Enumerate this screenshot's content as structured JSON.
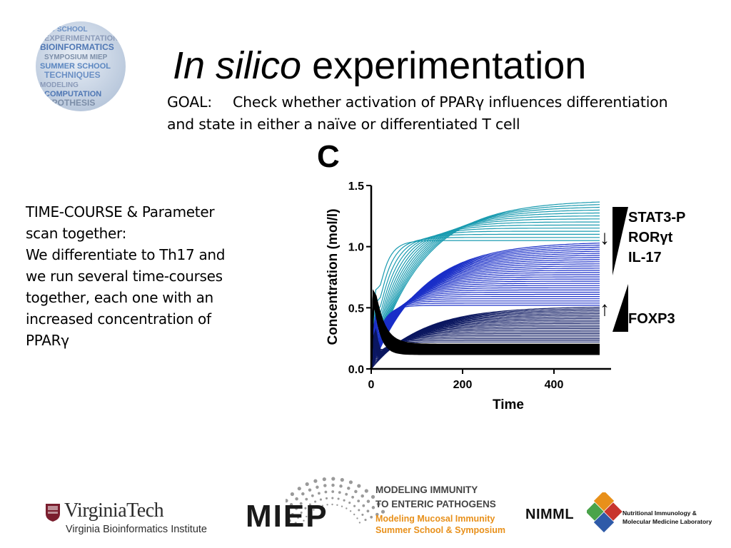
{
  "slide": {
    "title_italic": "In silico",
    "title_rest": " experimentation",
    "goal_label": "GOAL:",
    "goal_line1": "Check whether activation of PPARγ influences differentiation",
    "goal_line2": "and state in either a naïve or differentiated T cell",
    "left_text": [
      "TIME-COURSE & Parameter",
      "scan together:",
      "We differentiate to Th17 and",
      "we run several time-courses",
      "together, each one with an",
      "increased concentration of",
      "PPARγ"
    ]
  },
  "sphere_logo": {
    "words": [
      "PHD SCHOOL",
      "EXPERIMENTATION",
      "BIOINFORMATICS",
      "SYMPOSIUM MIEP",
      "SUMMER SCHOOL",
      "TECHNIQUES",
      "MODELING",
      "COMPUTATION",
      "HYPOTHESIS"
    ]
  },
  "chart_data": {
    "type": "line",
    "panel_label": "C",
    "xlabel": "Time",
    "ylabel": "Concentration (mol/l)",
    "xlim": [
      0,
      500
    ],
    "ylim": [
      0,
      1.5
    ],
    "x_ticks": [
      "0",
      "200",
      "400"
    ],
    "y_ticks": [
      "0.0",
      "0.5",
      "1.0",
      "1.5"
    ],
    "grid": false,
    "colors": {
      "teal": "#1a9bb0",
      "blue": "#1a2fc8",
      "navy": "#0b1760",
      "black": "#000000"
    },
    "series_groups": [
      {
        "color": "teal",
        "plateau_range": [
          1.05,
          1.38
        ],
        "count": 14
      },
      {
        "color": "blue",
        "plateau_range": [
          0.52,
          1.04
        ],
        "count": 30
      },
      {
        "color": "navy",
        "plateau_range": [
          0.22,
          0.51
        ],
        "count": 22
      },
      {
        "color": "black",
        "plateau_range": [
          0.12,
          0.2
        ],
        "count": 14,
        "peak": 0.88,
        "peak_x": 8
      }
    ],
    "annotations": {
      "group1_labels": [
        "STAT3-P",
        "RORγt",
        "IL-17"
      ],
      "group1_arrow": "down",
      "group2_labels": [
        "FOXP3"
      ],
      "group2_arrow": "up"
    }
  },
  "footer": {
    "vt_name": "VirginiaTech",
    "vt_sub": "Virginia Bioinformatics Institute",
    "miep_word": "MIEP",
    "miep_l1": "MODELING IMMUNITY",
    "miep_l2": "TO ENTERIC PATHOGENS",
    "miep_l3": "Modeling Mucosal Immunity",
    "miep_l4": "Summer School & Symposium",
    "nimml_word": "NIMML",
    "nimml_l1": "Nutritional Immunology &",
    "nimml_l2": "Molecular Medicine Laboratory"
  }
}
